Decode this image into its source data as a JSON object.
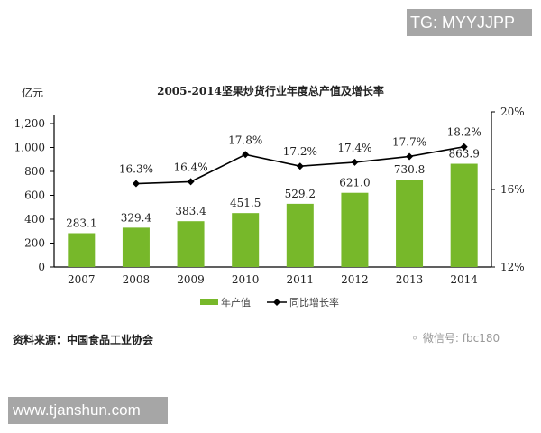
{
  "watermarks": {
    "top_right": "TG: MYYJJPP",
    "bottom_left": "www.tjanshun.com",
    "wechat": "微信号: fbc180"
  },
  "source": "资料来源：中国食品工业协会",
  "chart_data": {
    "type": "bar",
    "title": "2005-2014坚果炒货行业年度总产值及增长率",
    "xlabel": "",
    "ylabel": "亿元",
    "categories": [
      "2007",
      "2008",
      "2009",
      "2010",
      "2011",
      "2012",
      "2013",
      "2014"
    ],
    "series": [
      {
        "name": "年产值",
        "type": "bar",
        "axis": "left",
        "color": "#77b82a",
        "values": [
          283.1,
          329.4,
          383.4,
          451.5,
          529.2,
          621.0,
          730.8,
          863.9
        ],
        "labels": [
          "283.1",
          "329.4",
          "383.4",
          "451.5",
          "529.2",
          "621.0",
          "730.8",
          "863.9"
        ]
      },
      {
        "name": "同比增长率",
        "type": "line",
        "axis": "right",
        "color": "#000000",
        "marker": "diamond",
        "values": [
          null,
          16.3,
          16.4,
          17.8,
          17.2,
          17.4,
          17.7,
          18.2
        ],
        "labels": [
          "",
          "16.3%",
          "16.4%",
          "17.8%",
          "17.2%",
          "17.4%",
          "17.7%",
          "18.2%"
        ]
      }
    ],
    "ylim": [
      0,
      1200
    ],
    "yticks": [
      "0",
      "200",
      "400",
      "600",
      "800",
      "1,000",
      "1,200"
    ],
    "y2lim": [
      12,
      20
    ],
    "y2ticks": [
      "12%",
      "16%",
      "20%"
    ],
    "grid": false,
    "legend": {
      "position": "bottom",
      "entries": [
        "年产值",
        "同比增长率"
      ]
    }
  }
}
